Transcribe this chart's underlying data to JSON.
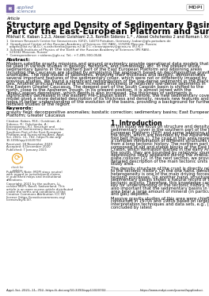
{
  "bg_color": "#ffffff",
  "header_line_color": "#cccccc",
  "footer_line_color": "#cccccc",
  "journal_color": "#6b7db3",
  "article_label": "Article",
  "title_line1": "Structure and Density of Sedimentary Basins in the Southern",
  "title_line2": "Part of the East-European Platform and Surrounding Area",
  "authors": "Mikhail K. Kaban 1,2,3, Alexei Gvishiani 2,3, Roman Sidorov 1,* , Alexei Oshchenko 2 and Roman I. Krasnoperov 2",
  "affil1": "1  German Research Centre for Geosciences (GFZ), 14473 Potsdam, Germany; kaban@gfz-potsdam.de",
  "affil2a": "2  Geophysical Center of the Russian Academy of Sciences (GC RAS), 119296 Moscow, Russia;",
  "affil2b": "   adgeo@list.ru (A.G.); a.oshchenko@gcras.ru (A.O.); r.krasnoperov@gcras.ru (R.I.K.)",
  "affil3a": "3  Schmidt Institute of Physics of the Earth of the Russian Academy of Sciences (IPE RAS),",
  "affil3b": "   123242 Moscow, Russia",
  "affil4": "*  Correspondence: r.sidorov@gfz.ru; Tel.: +7-495-930-0546",
  "abstract_label": "Abstract:",
  "abstract_text": "Modern satellite gravity missions and ground gravimetry provide operational data models that can be used in various studies in geology, tectonics, and climatology, etc. In the present study, sedimentary basins in the southern part of the East European Platform and adjoining areas including the Caucasus are studied by employing the approach based on decomposative gravity anomalies. The new model of sediments, implying their thickness and density, demonstrates several important features of the sedimentary cover, which were not or differently imaged by previous studies. We found a significant redistribution of the low-dense sediments in the Black Sea. Another principal feature is the increased thickness of relatively low-dense sediments in the Eastern Greater Caucasus. The deepest part of the South Caspian basin is shifted to the north, close to the Apsheron Trough. In its present position, it is almost joined with the Terek-Caspian depression, which depth is also increased. The thickness of sediments is significantly decreased in the eastern Pre-Caspian basin. Therefore, the new sedimentary cover model gives a more detailed description of its thickness and density, reveals new features and helps in better understanding of the evolution of the basins, providing a background for further detailed studies of the region.",
  "keywords_label": "Keywords:",
  "keywords_text": "gravity field; decompositive anomalies; isostatic correction; sedimentary basins; East European Platform; Greater Caucasus",
  "section1_title": "1. Introduction",
  "intro_text": "In this study we focus on structure and density of the sedimentary cover in the southern part of the East European Platform (EEP) and some adjoining structures to the south, which are bounded by the Alpine-Mediterranean fold belt (Figure 1). The crust in this area represents a complex combination of different structures resulted from a long tectonic history. The northern part is composed of old and stable blocks of the East European Craton, which formation started in the early Archean. In the south, they are bounded by relatively young depressions likely appeared during the Arabia-Eurasia plate collision [2]. In the next section, we provide a detailed description of the main tectonic units in the study area.",
  "intro_text2": "The density structure of the crust is directly related to the tectonic history. On the one hand, density heterogeneity is one of the main driving forces of tectonic processes. On another hand, structure of the sedimentary basins shows a natural record of the former tectonic activity. Therefore, this knowledge can give a key for understanding of the tectonic history. It is also important that the sedimentary basins in the study area bear a large amount of mineral (in particularly oil and gas) deposits.",
  "intro_text3": "Massive gravity studies of this area were chiefly conducted in 1970s and 1980s based on largely outdated interpretation techniques and data sets, e.g., [2], concluded by latest",
  "citation_lines": [
    "Citation: Kaban, M.K.; Gvishiani, A.;",
    "Sidorov, R.; Oshchenko, A.;",
    "Krasnoperov, R.I. Structure and",
    "Density of Sedimentary Basins in the",
    "Southern Part of the East-European",
    "Platform and Surrounding Area. Appl.",
    "Sci. 2021, 11, 702. https://i.doi.org/",
    "10.3390/app11020702"
  ],
  "received_lines": [
    "Received: 18 November 2020",
    "Accepted: 6 December 2020",
    "Published: 7 January 2021"
  ],
  "publisher_lines": [
    "Publisher's Note: MDPI stays neutral",
    "with regard to jurisdictional claims",
    "in published maps and institutional",
    "affiliations."
  ],
  "copyright_lines": [
    "Copyright: 2021 by the authors. Li-",
    "censee MDPI, Basel, Switzerland. This",
    "article is an open access article distributed",
    "under the terms and conditions of the",
    "Creative Commons Attribution (CC BY)",
    "license (https://creativecommons.org/",
    "licenses/by/4.0/)."
  ],
  "footer_left": "Appl. Sci. 2021, 11, 702. https://i.doi.org/10.3390/app11020702",
  "footer_right": "https://www.mdpi.com/journal/appliedsci",
  "check_updates_color": "#e8a020",
  "logo_square_color": "#7b68aa",
  "mdpi_border_color": "#888888",
  "title_fontsize": 7.5,
  "body_fontsize": 4.2,
  "small_fontsize": 2.9,
  "section_fontsize": 5.5,
  "affil_fontsize": 2.9
}
